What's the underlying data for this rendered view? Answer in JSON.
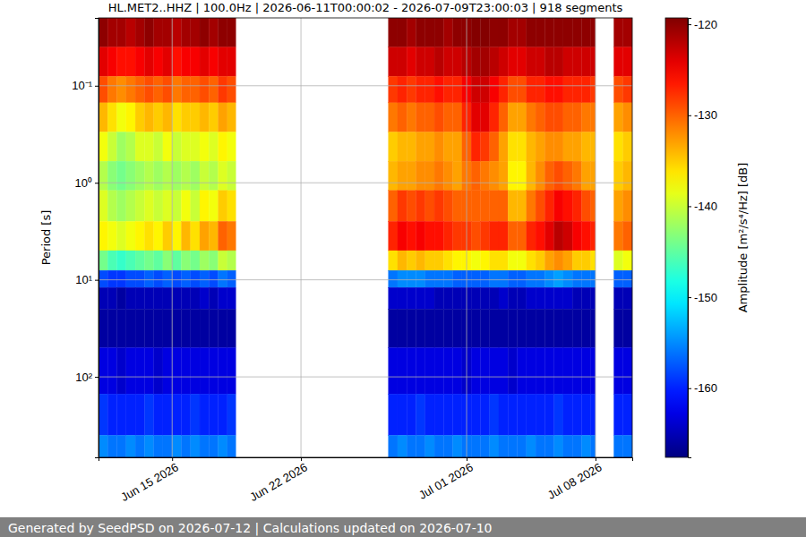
{
  "chart_data": {
    "type": "heatmap",
    "title": "HL.MET2..HHZ | 100.0Hz | 2026-06-11T00:00:02 - 2026-07-09T23:00:03 | 918 segments",
    "y_label": "Period [s]",
    "colorbar_label": "Amplitude [m²/s⁴/Hz] [dB]",
    "footer": "Generated by SeedPSD on 2026-07-12 | Calculations updated on 2026-07-10",
    "xlim": [
      "2026-06-11T00:00",
      "2026-07-10T00:00"
    ],
    "xticks": [
      {
        "value": "2026-06-15T00:00",
        "label": "Jun 15 2026"
      },
      {
        "value": "2026-06-22T00:00",
        "label": "Jun 22 2026"
      },
      {
        "value": "2026-07-01T00:00",
        "label": "Jul 01 2026"
      },
      {
        "value": "2026-07-08T00:00",
        "label": "Jul 08 2026"
      }
    ],
    "ylim": [
      0.02,
      675
    ],
    "yticks": [
      {
        "value": 0.1,
        "label": "10⁻¹"
      },
      {
        "value": 1,
        "label": "10⁰"
      },
      {
        "value": 10,
        "label": "10¹"
      },
      {
        "value": 100,
        "label": "10²"
      }
    ],
    "log": "y",
    "grid": true,
    "clim": [
      -167.6,
      -119.3
    ],
    "cticks": [
      -160,
      -150,
      -140,
      -130,
      -120
    ],
    "period_edges": [
      0.02,
      0.04,
      0.08,
      0.15,
      0.3,
      0.6,
      1.2,
      2.5,
      5,
      8,
      12,
      20,
      50,
      150,
      400,
      675
    ],
    "columns": [
      {
        "start": "2026-06-11T00:00",
        "end": "2026-06-11T12:00",
        "values": [
          -120,
          -124,
          -129,
          -134,
          -138,
          -141,
          -139,
          -137,
          -144,
          -158,
          -165,
          -166,
          -163,
          -159,
          -155
        ]
      },
      {
        "start": "2026-06-11T12:00",
        "end": "2026-06-12T00:00",
        "values": [
          -121,
          -125,
          -131,
          -136,
          -140,
          -143,
          -141,
          -138,
          -146,
          -159,
          -165,
          -166,
          -163,
          -160,
          -156
        ]
      },
      {
        "start": "2026-06-12T00:00",
        "end": "2026-06-12T12:00",
        "values": [
          -121,
          -126,
          -132,
          -138,
          -142,
          -144,
          -142,
          -139,
          -147,
          -159,
          -166,
          -166,
          -164,
          -160,
          -156
        ]
      },
      {
        "start": "2026-06-12T12:00",
        "end": "2026-06-13T00:00",
        "values": [
          -122,
          -126,
          -131,
          -137,
          -141,
          -143,
          -141,
          -138,
          -146,
          -158,
          -165,
          -166,
          -163,
          -160,
          -155
        ]
      },
      {
        "start": "2026-06-13T00:00",
        "end": "2026-06-13T12:00",
        "values": [
          -121,
          -125,
          -130,
          -135,
          -139,
          -142,
          -140,
          -137,
          -145,
          -158,
          -165,
          -166,
          -163,
          -160,
          -156
        ]
      },
      {
        "start": "2026-06-13T12:00",
        "end": "2026-06-14T00:00",
        "values": [
          -120,
          -124,
          -129,
          -134,
          -139,
          -141,
          -139,
          -136,
          -144,
          -157,
          -165,
          -166,
          -163,
          -159,
          -155
        ]
      },
      {
        "start": "2026-06-14T00:00",
        "end": "2026-06-14T12:00",
        "values": [
          -121,
          -125,
          -130,
          -135,
          -140,
          -142,
          -140,
          -137,
          -145,
          -158,
          -165,
          -166,
          -164,
          -160,
          -156
        ]
      },
      {
        "start": "2026-06-14T12:00",
        "end": "2026-06-15T00:00",
        "values": [
          -121,
          -124,
          -129,
          -134,
          -138,
          -141,
          -139,
          -135,
          -143,
          -157,
          -165,
          -166,
          -163,
          -160,
          -156
        ]
      },
      {
        "start": "2026-06-15T00:00",
        "end": "2026-06-15T12:00",
        "values": [
          -122,
          -126,
          -131,
          -136,
          -140,
          -142,
          -140,
          -137,
          -145,
          -158,
          -165,
          -166,
          -163,
          -160,
          -155
        ]
      },
      {
        "start": "2026-06-15T12:00",
        "end": "2026-06-16T00:00",
        "values": [
          -121,
          -125,
          -130,
          -135,
          -139,
          -141,
          -138,
          -134,
          -143,
          -157,
          -165,
          -166,
          -163,
          -160,
          -156
        ]
      },
      {
        "start": "2026-06-16T00:00",
        "end": "2026-06-16T12:00",
        "values": [
          -121,
          -125,
          -130,
          -135,
          -139,
          -142,
          -140,
          -136,
          -144,
          -158,
          -165,
          -166,
          -163,
          -159,
          -155
        ]
      },
      {
        "start": "2026-06-16T12:00",
        "end": "2026-06-17T00:00",
        "values": [
          -120,
          -124,
          -129,
          -134,
          -138,
          -140,
          -137,
          -133,
          -142,
          -157,
          -164,
          -166,
          -163,
          -160,
          -156
        ]
      },
      {
        "start": "2026-06-17T00:00",
        "end": "2026-06-17T12:00",
        "values": [
          -121,
          -125,
          -130,
          -135,
          -139,
          -141,
          -138,
          -134,
          -143,
          -158,
          -165,
          -166,
          -163,
          -160,
          -156
        ]
      },
      {
        "start": "2026-06-17T12:00",
        "end": "2026-06-18T00:00",
        "values": [
          -120,
          -124,
          -128,
          -133,
          -137,
          -139,
          -135,
          -130,
          -140,
          -156,
          -164,
          -166,
          -163,
          -160,
          -155
        ]
      },
      {
        "start": "2026-06-18T00:00",
        "end": "2026-06-18T11:00",
        "values": [
          -120,
          -124,
          -129,
          -134,
          -138,
          -140,
          -136,
          -131,
          -141,
          -157,
          -164,
          -166,
          -163,
          -159,
          -156
        ]
      },
      {
        "start": "2026-06-26T18:00",
        "end": "2026-06-27T06:00",
        "values": [
          -120,
          -123,
          -128,
          -131,
          -135,
          -134,
          -130,
          -127,
          -136,
          -156,
          -164,
          -166,
          -163,
          -160,
          -156
        ]
      },
      {
        "start": "2026-06-27T06:00",
        "end": "2026-06-27T18:00",
        "values": [
          -120,
          -123,
          -127,
          -130,
          -134,
          -133,
          -128,
          -125,
          -134,
          -155,
          -164,
          -166,
          -163,
          -160,
          -155
        ]
      },
      {
        "start": "2026-06-27T18:00",
        "end": "2026-06-28T06:00",
        "values": [
          -121,
          -124,
          -128,
          -131,
          -134,
          -133,
          -129,
          -126,
          -135,
          -155,
          -164,
          -166,
          -163,
          -160,
          -156
        ]
      },
      {
        "start": "2026-06-28T06:00",
        "end": "2026-06-28T18:00",
        "values": [
          -120,
          -123,
          -127,
          -130,
          -133,
          -132,
          -128,
          -125,
          -134,
          -155,
          -164,
          -166,
          -163,
          -159,
          -156
        ]
      },
      {
        "start": "2026-06-28T18:00",
        "end": "2026-06-29T06:00",
        "values": [
          -120,
          -123,
          -127,
          -130,
          -133,
          -132,
          -129,
          -126,
          -135,
          -156,
          -164,
          -166,
          -163,
          -160,
          -155
        ]
      },
      {
        "start": "2026-06-29T06:00",
        "end": "2026-06-29T18:00",
        "values": [
          -120,
          -122,
          -126,
          -129,
          -132,
          -131,
          -128,
          -126,
          -135,
          -156,
          -165,
          -166,
          -163,
          -160,
          -156
        ]
      },
      {
        "start": "2026-06-29T18:00",
        "end": "2026-06-30T06:00",
        "values": [
          -121,
          -123,
          -127,
          -130,
          -133,
          -132,
          -129,
          -127,
          -136,
          -156,
          -165,
          -166,
          -163,
          -160,
          -156
        ]
      },
      {
        "start": "2026-06-30T06:00",
        "end": "2026-06-30T18:00",
        "values": [
          -120,
          -123,
          -127,
          -130,
          -133,
          -133,
          -130,
          -128,
          -137,
          -157,
          -165,
          -166,
          -163,
          -160,
          -155
        ]
      },
      {
        "start": "2026-06-30T18:00",
        "end": "2026-07-01T06:00",
        "values": [
          -120,
          -122,
          -125,
          -127,
          -130,
          -131,
          -130,
          -128,
          -137,
          -157,
          -165,
          -166,
          -164,
          -160,
          -156
        ]
      },
      {
        "start": "2026-07-01T06:00",
        "end": "2026-07-01T18:00",
        "values": [
          -119.5,
          -121,
          -123,
          -124,
          -127,
          -130,
          -130,
          -129,
          -138,
          -157,
          -165,
          -166,
          -163,
          -160,
          -156
        ]
      },
      {
        "start": "2026-07-01T18:00",
        "end": "2026-07-02T06:00",
        "values": [
          -119.5,
          -121,
          -123,
          -124,
          -128,
          -131,
          -130,
          -128,
          -137,
          -157,
          -165,
          -166,
          -163,
          -160,
          -156
        ]
      },
      {
        "start": "2026-07-02T06:00",
        "end": "2026-07-02T18:00",
        "values": [
          -120,
          -122,
          -125,
          -127,
          -130,
          -132,
          -130,
          -127,
          -136,
          -156,
          -165,
          -166,
          -163,
          -159,
          -155
        ]
      },
      {
        "start": "2026-07-02T18:00",
        "end": "2026-07-03T06:00",
        "values": [
          -120,
          -123,
          -127,
          -130,
          -133,
          -133,
          -130,
          -127,
          -136,
          -156,
          -164,
          -166,
          -163,
          -160,
          -156
        ]
      },
      {
        "start": "2026-07-03T06:00",
        "end": "2026-07-03T18:00",
        "values": [
          -121,
          -124,
          -129,
          -133,
          -136,
          -137,
          -134,
          -130,
          -138,
          -157,
          -165,
          -166,
          -164,
          -160,
          -156
        ]
      },
      {
        "start": "2026-07-03T18:00",
        "end": "2026-07-04T06:00",
        "values": [
          -121,
          -124,
          -129,
          -133,
          -136,
          -137,
          -134,
          -130,
          -138,
          -157,
          -165,
          -166,
          -163,
          -160,
          -156
        ]
      },
      {
        "start": "2026-07-04T06:00",
        "end": "2026-07-04T18:00",
        "values": [
          -120,
          -123,
          -127,
          -131,
          -134,
          -134,
          -131,
          -127,
          -136,
          -156,
          -164,
          -166,
          -163,
          -160,
          -155
        ]
      },
      {
        "start": "2026-07-04T18:00",
        "end": "2026-07-05T06:00",
        "values": [
          -120,
          -123,
          -127,
          -130,
          -133,
          -132,
          -129,
          -126,
          -135,
          -156,
          -164,
          -166,
          -163,
          -160,
          -156
        ]
      },
      {
        "start": "2026-07-05T06:00",
        "end": "2026-07-05T18:00",
        "values": [
          -120,
          -122,
          -126,
          -129,
          -132,
          -130,
          -127,
          -124,
          -133,
          -155,
          -164,
          -166,
          -163,
          -160,
          -156
        ]
      },
      {
        "start": "2026-07-05T18:00",
        "end": "2026-07-06T06:00",
        "values": [
          -120,
          -122,
          -126,
          -129,
          -132,
          -129,
          -125,
          -122,
          -132,
          -154,
          -164,
          -166,
          -163,
          -159,
          -155
        ]
      },
      {
        "start": "2026-07-06T06:00",
        "end": "2026-07-06T18:00",
        "values": [
          -120,
          -123,
          -127,
          -130,
          -133,
          -130,
          -126,
          -123,
          -133,
          -155,
          -164,
          -166,
          -163,
          -160,
          -156
        ]
      },
      {
        "start": "2026-07-06T18:00",
        "end": "2026-07-07T06:00",
        "values": [
          -120,
          -123,
          -127,
          -130,
          -133,
          -131,
          -127,
          -125,
          -135,
          -156,
          -165,
          -166,
          -163,
          -160,
          -156
        ]
      },
      {
        "start": "2026-07-07T06:00",
        "end": "2026-07-07T18:00",
        "values": [
          -120,
          -123,
          -127,
          -131,
          -134,
          -133,
          -129,
          -126,
          -135,
          -156,
          -165,
          -166,
          -163,
          -160,
          -155
        ]
      },
      {
        "start": "2026-07-07T18:00",
        "end": "2026-07-08T00:00",
        "values": [
          -120,
          -123,
          -128,
          -131,
          -134,
          -133,
          -130,
          -127,
          -136,
          -156,
          -165,
          -166,
          -163,
          -160,
          -156
        ]
      },
      {
        "start": "2026-07-09T00:00",
        "end": "2026-07-09T12:00",
        "values": [
          -121,
          -124,
          -129,
          -133,
          -136,
          -135,
          -133,
          -131,
          -139,
          -157,
          -165,
          -166,
          -163,
          -160,
          -156
        ]
      },
      {
        "start": "2026-07-09T12:00",
        "end": "2026-07-10T00:00",
        "values": [
          -121,
          -124,
          -128,
          -132,
          -135,
          -134,
          -132,
          -130,
          -138,
          -157,
          -165,
          -166,
          -163,
          -160,
          -156
        ]
      }
    ]
  }
}
